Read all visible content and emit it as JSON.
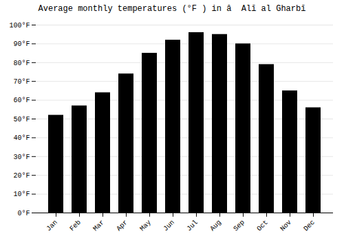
{
  "chart_data": {
    "type": "bar",
    "title": "Average monthly temperatures (°F ) in â  Alī al Gharbī",
    "categories": [
      "Jan",
      "Feb",
      "Mar",
      "Apr",
      "May",
      "Jun",
      "Jul",
      "Aug",
      "Sep",
      "Oct",
      "Nov",
      "Dec"
    ],
    "values": [
      52,
      57,
      64,
      74,
      85,
      92,
      96,
      95,
      90,
      79,
      65,
      56
    ],
    "ylim": [
      0,
      100
    ],
    "yticks": [
      {
        "value": 0,
        "label": "0°F"
      },
      {
        "value": 10,
        "label": "10°F"
      },
      {
        "value": 20,
        "label": "20°F"
      },
      {
        "value": 30,
        "label": "30°F"
      },
      {
        "value": 40,
        "label": "40°F"
      },
      {
        "value": 50,
        "label": "50°F"
      },
      {
        "value": 60,
        "label": "60°F"
      },
      {
        "value": 70,
        "label": "70°F"
      },
      {
        "value": 80,
        "label": "80°F"
      },
      {
        "value": 90,
        "label": "90°F"
      },
      {
        "value": 100,
        "label": "100°F"
      }
    ],
    "grid": true
  }
}
